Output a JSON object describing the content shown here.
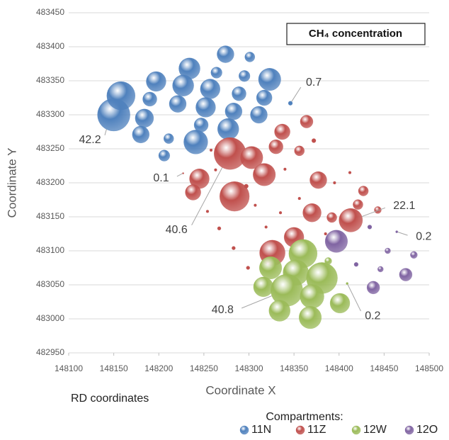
{
  "chart_data": {
    "type": "bubble",
    "title": "CH₄ concentration",
    "x_label": "Coordinate X",
    "y_label": "Coordinate Y",
    "annotation": "RD coordinates",
    "legend_title": "Compartments:",
    "xlim": [
      148100,
      148500
    ],
    "xticks": [
      148100,
      148150,
      148200,
      148250,
      148300,
      148350,
      148400,
      148450,
      148500
    ],
    "ylim": [
      482950,
      483450
    ],
    "yticks": [
      482950,
      483000,
      483050,
      483100,
      483150,
      483200,
      483250,
      483300,
      483350,
      483400,
      483450
    ],
    "grid": "y",
    "legend": "bottom",
    "series": [
      {
        "name": "11N",
        "color": "#4f81bd",
        "x": [
          148150,
          148158,
          148184,
          148190,
          148180,
          148197,
          148221,
          148211,
          148206,
          148234,
          148227,
          148241,
          148257,
          148252,
          148247,
          148264,
          148274,
          148283,
          148277,
          148289,
          148295,
          148301,
          148323,
          148317,
          148311,
          148346
        ],
        "values": [
          483300,
          483328,
          483295,
          483323,
          483271,
          483349,
          483316,
          483265,
          483240,
          483368,
          483343,
          483260,
          483338,
          483311,
          483285,
          483362,
          483389,
          483305,
          483279,
          483331,
          483357,
          483385,
          483352,
          483325,
          483300,
          483317
        ],
        "sizes": [
          42.2,
          32,
          13.5,
          8,
          11.5,
          15.6,
          11.5,
          4,
          5,
          18,
          18,
          23,
          15.6,
          15.6,
          8,
          5,
          11.5,
          11.5,
          18,
          8,
          5,
          4,
          20,
          9.7,
          11.5,
          0.7
        ],
        "value_labels": [
          "42.2",
          null,
          null,
          null,
          null,
          null,
          null,
          null,
          null,
          null,
          null,
          null,
          null,
          null,
          null,
          null,
          null,
          null,
          null,
          null,
          null,
          null,
          null,
          null,
          null,
          "0.7"
        ]
      },
      {
        "name": "11Z",
        "color": "#c0504d",
        "x": [
          148279,
          148284,
          148303,
          148317,
          148245,
          148238,
          148337,
          148330,
          148364,
          148356,
          148377,
          148370,
          148392,
          148413,
          148421,
          148427,
          148443,
          148350,
          148326,
          148227,
          148258,
          148263,
          148254,
          148267,
          148283,
          148299,
          148297,
          148307,
          148319,
          148335,
          148356,
          148372,
          148340,
          148395,
          148412,
          148385
        ],
        "values": [
          483243,
          483180,
          483237,
          483212,
          483206,
          483186,
          483275,
          483253,
          483290,
          483247,
          483204,
          483156,
          483149,
          483145,
          483168,
          483188,
          483160,
          483120,
          483097,
          483214,
          483248,
          483219,
          483158,
          483133,
          483104,
          483075,
          483195,
          483167,
          483135,
          483156,
          483177,
          483262,
          483220,
          483200,
          483215,
          483125
        ],
        "sizes": [
          40.6,
          35,
          20,
          20,
          15.6,
          9.7,
          9.7,
          8,
          6.5,
          4,
          11.5,
          13.5,
          4,
          22.1,
          4,
          4,
          2,
          15.6,
          26,
          0.1,
          0.3,
          0.3,
          0.3,
          0.5,
          0.5,
          0.5,
          0.7,
          0.3,
          0.3,
          0.3,
          0.3,
          0.7,
          0.3,
          0.3,
          0.3,
          0.3
        ],
        "value_labels": [
          "40.6",
          null,
          null,
          null,
          null,
          null,
          null,
          null,
          null,
          null,
          null,
          null,
          null,
          "22.1",
          null,
          null,
          null,
          null,
          null,
          "0.1",
          null,
          null,
          null,
          null,
          null,
          null,
          null,
          null,
          null,
          null,
          null,
          null,
          null,
          null,
          null,
          null
        ]
      },
      {
        "name": "12W",
        "color": "#9bbb59",
        "x": [
          148360,
          148352,
          148381,
          148324,
          148342,
          148316,
          148370,
          148368,
          148334,
          148401,
          148388,
          148409
        ],
        "values": [
          483096,
          483068,
          483060,
          483075,
          483042,
          483047,
          483033,
          483002,
          483012,
          483023,
          483085,
          483052
        ],
        "sizes": [
          32,
          26,
          38.6,
          20,
          40.8,
          15.6,
          23,
          20,
          18,
          15.6,
          2,
          0.2
        ],
        "value_labels": [
          null,
          null,
          null,
          null,
          "40.8",
          null,
          null,
          null,
          null,
          null,
          null,
          "0.2"
        ]
      },
      {
        "name": "12O",
        "color": "#8064a2",
        "x": [
          148397,
          148438,
          148474,
          148483,
          148454,
          148446,
          148434,
          148419,
          148464
        ],
        "values": [
          483114,
          483046,
          483065,
          483094,
          483100,
          483073,
          483135,
          483080,
          483128
        ],
        "sizes": [
          20,
          6.5,
          6.5,
          2,
          1.3,
          1.3,
          0.7,
          0.7,
          0.2
        ],
        "value_labels": [
          null,
          null,
          null,
          null,
          null,
          null,
          null,
          null,
          "0.2"
        ]
      }
    ]
  }
}
